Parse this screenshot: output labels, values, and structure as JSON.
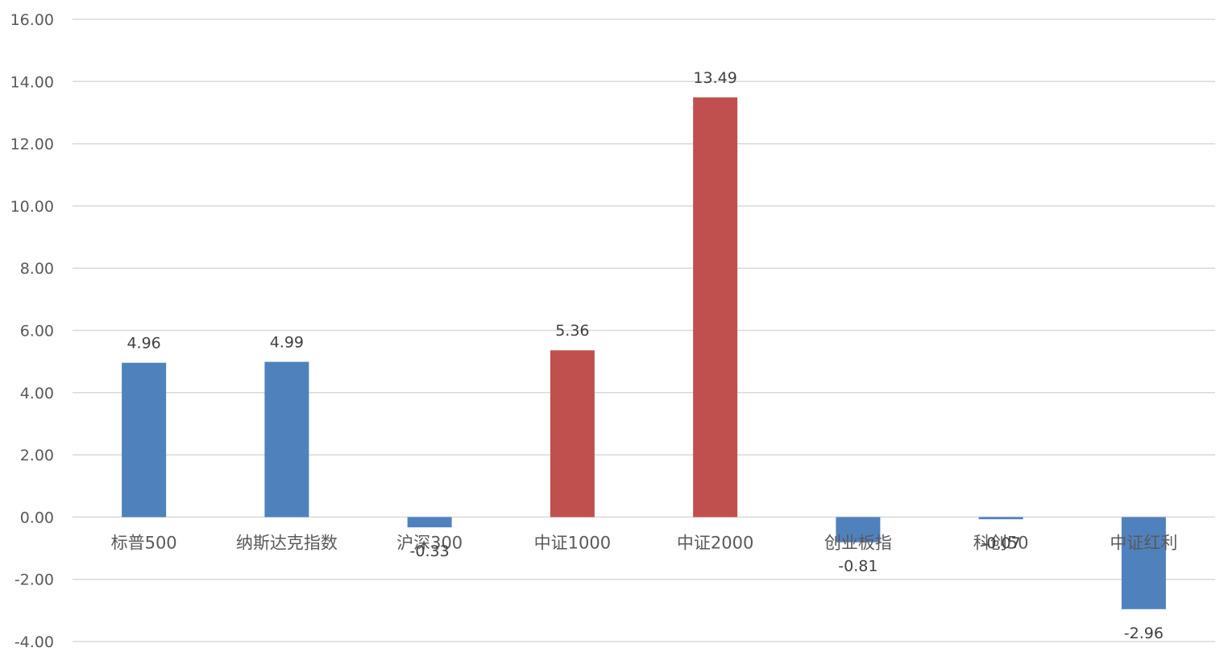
{
  "chart_data": {
    "type": "bar",
    "categories": [
      "标普500",
      "纳斯达克指数",
      "沪深300",
      "中证1000",
      "中证2000",
      "创业板指",
      "科创50",
      "中证红利"
    ],
    "values": [
      4.96,
      4.99,
      -0.33,
      5.36,
      13.49,
      -0.81,
      -0.07,
      -2.96
    ],
    "value_labels": [
      "4.96",
      "4.99",
      "-0.33",
      "5.36",
      "13.49",
      "-0.81",
      "-0.07",
      "-2.96"
    ],
    "bar_colors": [
      "#4f81bd",
      "#4f81bd",
      "#4f81bd",
      "#c0504d",
      "#c0504d",
      "#4f81bd",
      "#4f81bd",
      "#4f81bd"
    ],
    "ylim": [
      -4,
      16
    ],
    "yticks": [
      16,
      14,
      12,
      10,
      8,
      6,
      4,
      2,
      0,
      -2,
      -4
    ],
    "ytick_labels": [
      "16.00",
      "14.00",
      "12.00",
      "10.00",
      "8.00",
      "6.00",
      "4.00",
      "2.00",
      "0.00",
      "-2.00",
      "-4.00"
    ],
    "grid": true,
    "title": "",
    "xlabel": "",
    "ylabel": ""
  }
}
